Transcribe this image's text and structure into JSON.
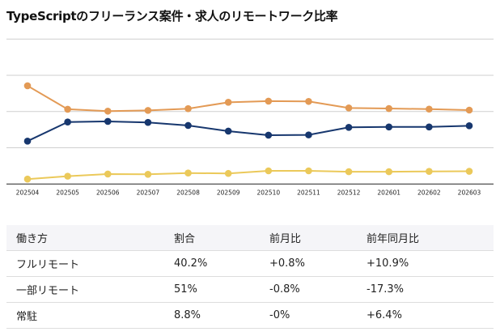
{
  "title": "TypeScriptのフリーランス案件・求人のリモートワーク比率",
  "chart_data": {
    "type": "line",
    "title": "TypeScriptのフリーランス案件・求人のリモートワーク比率",
    "categories": [
      "202504",
      "202505",
      "202506",
      "202507",
      "202508",
      "202509",
      "202510",
      "202511",
      "202512",
      "202601",
      "202602",
      "202603"
    ],
    "ylim": [
      0,
      100
    ],
    "grid": true,
    "legend": "none",
    "series": [
      {
        "color": "#e39a55",
        "values": [
          67.8,
          51.6,
          50.3,
          50.8,
          52.0,
          56.4,
          57.2,
          57.0,
          52.5,
          52.1,
          51.7,
          51.0
        ]
      },
      {
        "color": "#17376e",
        "values": [
          29.6,
          42.8,
          43.2,
          42.5,
          40.4,
          36.5,
          33.7,
          33.9,
          39.1,
          39.4,
          39.4,
          40.2
        ]
      },
      {
        "color": "#ebc95a",
        "values": [
          3.4,
          5.4,
          6.9,
          6.7,
          7.6,
          7.3,
          9.1,
          9.1,
          8.5,
          8.5,
          8.7,
          8.8
        ]
      }
    ]
  },
  "table": {
    "headers": [
      "働き方",
      "割合",
      "前月比",
      "前年同月比"
    ],
    "rows": [
      [
        "フルリモート",
        "40.2%",
        "+0.8%",
        "+10.9%"
      ],
      [
        "一部リモート",
        "51%",
        "-0.8%",
        "-17.3%"
      ],
      [
        "常駐",
        "8.8%",
        "-0%",
        "+6.4%"
      ]
    ]
  }
}
